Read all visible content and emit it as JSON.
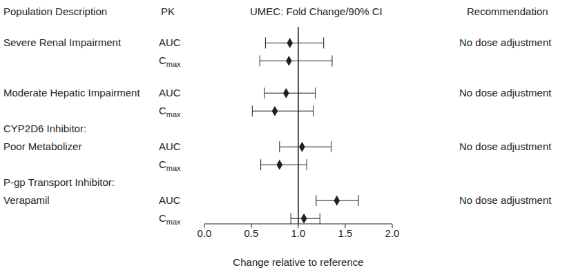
{
  "chart_data": {
    "type": "forest",
    "headers": [
      "Population Description",
      "PK",
      "UMEC: Fold Change/90% CI",
      "Recommendation"
    ],
    "x_label": "Change relative to reference",
    "xlim": [
      0,
      2
    ],
    "xticks": [
      {
        "value": 0,
        "label": "0.0"
      },
      {
        "value": 0.5,
        "label": "0.5"
      },
      {
        "value": 1,
        "label": "1.0"
      },
      {
        "value": 1.5,
        "label": "1.5"
      },
      {
        "value": 2,
        "label": "2.0"
      }
    ],
    "reference": 1,
    "color": "#231f20",
    "marker": "diamond",
    "groups": [
      {
        "label": [
          "Severe Renal Impairment"
        ],
        "recommendation": "No dose adjustment",
        "measures": [
          {
            "pk": "AUC",
            "estimate": 0.91,
            "ci": [
              0.65,
              1.27
            ]
          },
          {
            "pk": "Cmax",
            "estimate": 0.9,
            "ci": [
              0.59,
              1.36
            ]
          }
        ]
      },
      {
        "label": [
          "Moderate Hepatic Impairment"
        ],
        "recommendation": "No dose adjustment",
        "measures": [
          {
            "pk": "AUC",
            "estimate": 0.87,
            "ci": [
              0.64,
              1.18
            ]
          },
          {
            "pk": "Cmax",
            "estimate": 0.75,
            "ci": [
              0.51,
              1.16
            ]
          }
        ]
      },
      {
        "label": [
          "CYP2D6 Inhibitor:",
          "Poor Metabolizer"
        ],
        "recommendation": "No dose adjustment",
        "measures": [
          {
            "pk": "AUC",
            "estimate": 1.04,
            "ci": [
              0.8,
              1.35
            ]
          },
          {
            "pk": "Cmax",
            "estimate": 0.8,
            "ci": [
              0.6,
              1.09
            ]
          }
        ]
      },
      {
        "label": [
          "P-gp Transport Inhibitor:",
          "Verapamil"
        ],
        "recommendation": "No dose adjustment",
        "measures": [
          {
            "pk": "AUC",
            "estimate": 1.41,
            "ci": [
              1.19,
              1.64
            ]
          },
          {
            "pk": "Cmax",
            "estimate": 1.06,
            "ci": [
              0.92,
              1.23
            ]
          }
        ]
      }
    ]
  }
}
